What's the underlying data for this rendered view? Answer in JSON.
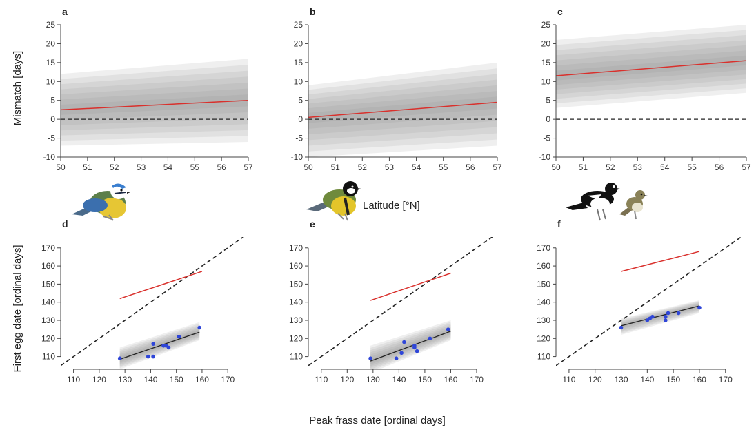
{
  "figure": {
    "ylabel_top": "Mismatch [days]",
    "xlabel_top": "Latitude [°N]",
    "ylabel_bottom": "First egg date [ordinal days]",
    "xlabel_bottom": "Peak frass date [ordinal days]"
  },
  "chart_data": [
    {
      "panel": "a",
      "type": "line",
      "xlim": [
        50,
        57
      ],
      "ylim": [
        -10,
        25
      ],
      "xticks": [
        50,
        51,
        52,
        53,
        54,
        55,
        56,
        57
      ],
      "yticks": [
        -10,
        -5,
        0,
        5,
        10,
        15,
        20,
        25
      ],
      "reference_line": 0,
      "series": [
        {
          "color": "#d9302c",
          "x": [
            50,
            57
          ],
          "y": [
            2.5,
            5.0
          ]
        }
      ],
      "uncertainty_band": {
        "x": [
          50,
          57
        ],
        "lower": [
          -7,
          -6
        ],
        "upper": [
          12,
          16
        ]
      }
    },
    {
      "panel": "b",
      "type": "line",
      "xlim": [
        50,
        57
      ],
      "ylim": [
        -10,
        25
      ],
      "xticks": [
        50,
        51,
        52,
        53,
        54,
        55,
        56,
        57
      ],
      "yticks": [
        -10,
        -5,
        0,
        5,
        10,
        15,
        20,
        25
      ],
      "reference_line": 0,
      "series": [
        {
          "color": "#d9302c",
          "x": [
            50,
            57
          ],
          "y": [
            0.5,
            4.5
          ]
        }
      ],
      "uncertainty_band": {
        "x": [
          50,
          57
        ],
        "lower": [
          -10,
          -7
        ],
        "upper": [
          9,
          15
        ]
      }
    },
    {
      "panel": "c",
      "type": "line",
      "xlim": [
        50,
        57
      ],
      "ylim": [
        -10,
        25
      ],
      "xticks": [
        50,
        51,
        52,
        53,
        54,
        55,
        56,
        57
      ],
      "yticks": [
        -10,
        -5,
        0,
        5,
        10,
        15,
        20,
        25
      ],
      "reference_line": 0,
      "series": [
        {
          "color": "#d9302c",
          "x": [
            50,
            57
          ],
          "y": [
            11.5,
            15.5
          ]
        }
      ],
      "uncertainty_band": {
        "x": [
          50,
          57
        ],
        "lower": [
          3,
          7
        ],
        "upper": [
          21,
          25
        ]
      }
    },
    {
      "panel": "d",
      "type": "scatter",
      "xlim": [
        105,
        178
      ],
      "ylim": [
        103,
        176
      ],
      "xticks": [
        110,
        120,
        130,
        140,
        150,
        160,
        170
      ],
      "yticks": [
        110,
        120,
        130,
        140,
        150,
        160,
        170
      ],
      "one_to_one_line": true,
      "red_line": {
        "x": [
          128,
          160
        ],
        "y": [
          142,
          157
        ]
      },
      "fit_line": {
        "x": [
          128,
          159
        ],
        "y": [
          108.5,
          123.5
        ]
      },
      "fit_band": {
        "x": [
          128,
          159
        ],
        "lower": [
          103,
          119
        ],
        "upper": [
          115,
          129
        ]
      },
      "points": {
        "x": [
          128,
          139,
          141,
          141,
          145,
          146,
          147,
          151,
          159
        ],
        "y": [
          109,
          110,
          110,
          117,
          116,
          116,
          115,
          121,
          126
        ]
      }
    },
    {
      "panel": "e",
      "type": "scatter",
      "xlim": [
        105,
        178
      ],
      "ylim": [
        103,
        176
      ],
      "xticks": [
        110,
        120,
        130,
        140,
        150,
        160,
        170
      ],
      "yticks": [
        110,
        120,
        130,
        140,
        150,
        160,
        170
      ],
      "one_to_one_line": true,
      "red_line": {
        "x": [
          129,
          160
        ],
        "y": [
          141,
          156
        ]
      },
      "fit_line": {
        "x": [
          129,
          160
        ],
        "y": [
          107.5,
          124
        ]
      },
      "fit_band": {
        "x": [
          129,
          160
        ],
        "lower": [
          101,
          119
        ],
        "upper": [
          116,
          130
        ]
      },
      "points": {
        "x": [
          129,
          139,
          141,
          142,
          146,
          146,
          147,
          152,
          159
        ],
        "y": [
          109,
          109,
          112,
          118,
          116,
          115,
          113,
          120,
          125
        ]
      }
    },
    {
      "panel": "f",
      "type": "scatter",
      "xlim": [
        105,
        178
      ],
      "ylim": [
        103,
        176
      ],
      "xticks": [
        110,
        120,
        130,
        140,
        150,
        160,
        170
      ],
      "yticks": [
        110,
        120,
        130,
        140,
        150,
        160,
        170
      ],
      "one_to_one_line": true,
      "red_line": {
        "x": [
          130,
          160
        ],
        "y": [
          157,
          168
        ]
      },
      "fit_line": {
        "x": [
          130,
          160
        ],
        "y": [
          127,
          138
        ]
      },
      "fit_band": {
        "x": [
          130,
          160
        ],
        "lower": [
          122,
          134
        ],
        "upper": [
          131,
          141
        ]
      },
      "points": {
        "x": [
          130,
          140,
          141,
          142,
          147,
          147,
          148,
          152,
          160
        ],
        "y": [
          126,
          130,
          131,
          132,
          130,
          132,
          134,
          134,
          137
        ]
      }
    }
  ]
}
